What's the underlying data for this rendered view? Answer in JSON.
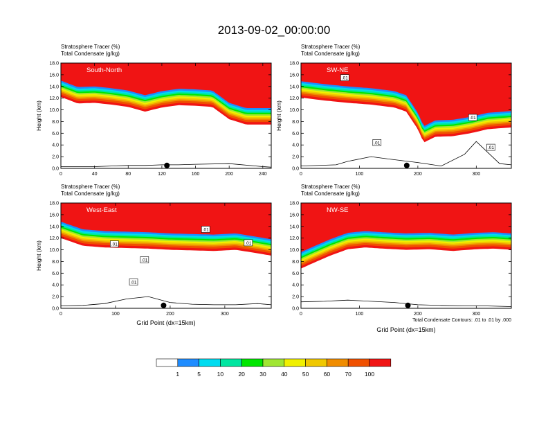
{
  "title": "2013-09-02_00:00:00",
  "colors": {
    "levels": [
      "#ffffff",
      "#1e8cff",
      "#00dcf0",
      "#00e6a0",
      "#00e600",
      "#a0e632",
      "#f0f000",
      "#f0c800",
      "#f08c00",
      "#f05000",
      "#f01414"
    ]
  },
  "colorbar": {
    "labels": [
      "1",
      "5",
      "10",
      "20",
      "30",
      "40",
      "50",
      "60",
      "70",
      "100"
    ]
  },
  "footnote": "Total Condensate Contours: .01 to .01 by .000",
  "chart_data": [
    {
      "type": "heatmap",
      "label": "South-North",
      "title_lines": [
        "Stratosphere Tracer   (%)",
        "Total Condensate   (g/kg)"
      ],
      "ylabel": "Height (km)",
      "xlabel": "",
      "xlim": [
        0,
        250
      ],
      "ylim": [
        0,
        18
      ],
      "xticks": [
        "0",
        "40",
        "80",
        "120",
        "160",
        "200",
        "240"
      ],
      "xtick_values": [
        0,
        40,
        80,
        120,
        160,
        200,
        240
      ],
      "yticks": [
        "0.0",
        "2.0",
        "4.0",
        "6.0",
        "8.0",
        "10.0",
        "12.0",
        "14.0",
        "16.0",
        "18.0"
      ],
      "ytick_values": [
        0,
        2,
        4,
        6,
        8,
        10,
        12,
        14,
        16,
        18
      ],
      "tropopause_x": [
        0,
        20,
        40,
        60,
        80,
        100,
        120,
        140,
        160,
        180,
        200,
        220,
        250
      ],
      "tropopause_km": [
        15.0,
        13.9,
        14.0,
        13.7,
        13.3,
        12.5,
        13.2,
        13.6,
        13.5,
        13.3,
        11.2,
        10.3,
        10.3
      ],
      "terrain_x": [
        0,
        40,
        60,
        80,
        100,
        120,
        140,
        160,
        200,
        240,
        250
      ],
      "terrain_km": [
        0.3,
        0.3,
        0.4,
        0.5,
        0.5,
        0.6,
        0.6,
        0.7,
        0.8,
        0.3,
        0.2
      ],
      "marker_x": 126,
      "contour_labels": []
    },
    {
      "type": "heatmap",
      "label": "SW-NE",
      "title_lines": [
        "Stratosphere Tracer   (%)",
        "Total Condensate   (g/kg)"
      ],
      "ylabel": "Height (km)",
      "xlabel": "",
      "xlim": [
        0,
        360
      ],
      "ylim": [
        0,
        18
      ],
      "xticks": [
        "0",
        "100",
        "200",
        "300"
      ],
      "xtick_values": [
        0,
        100,
        200,
        300
      ],
      "yticks": [
        "0.0",
        "2.0",
        "4.0",
        "6.0",
        "8.0",
        "10.0",
        "12.0",
        "14.0",
        "16.0",
        "18.0"
      ],
      "ytick_values": [
        0,
        2,
        4,
        6,
        8,
        10,
        12,
        14,
        16,
        18
      ],
      "tropopause_x": [
        0,
        40,
        80,
        120,
        160,
        180,
        200,
        210,
        230,
        260,
        290,
        320,
        360
      ],
      "tropopause_km": [
        14.9,
        14.4,
        14.0,
        13.7,
        13.2,
        12.5,
        9.5,
        7.2,
        8.2,
        8.3,
        8.8,
        9.5,
        9.8
      ],
      "terrain_x": [
        0,
        60,
        80,
        120,
        150,
        200,
        240,
        280,
        300,
        340,
        360
      ],
      "terrain_km": [
        0.4,
        0.6,
        1.2,
        2.0,
        1.6,
        1.0,
        0.4,
        2.4,
        4.6,
        0.8,
        0.6
      ],
      "marker_x": 181,
      "contour_labels": [
        ".01",
        ".01",
        ".01",
        ".01"
      ],
      "contour_label_x": [
        75,
        130,
        294,
        325
      ],
      "contour_label_km": [
        15.5,
        4.4,
        8.7,
        3.6
      ]
    },
    {
      "type": "heatmap",
      "label": "West-East",
      "title_lines": [
        "Stratosphere Tracer   (%)",
        "Total Condensate   (g/kg)"
      ],
      "ylabel": "Height (km)",
      "xlabel": "Grid Point (dx=15km)",
      "xlim": [
        0,
        385
      ],
      "ylim": [
        0,
        18
      ],
      "xticks": [
        "0",
        "100",
        "200",
        "300"
      ],
      "xtick_values": [
        0,
        100,
        200,
        300
      ],
      "yticks": [
        "0.0",
        "2.0",
        "4.0",
        "6.0",
        "8.0",
        "10.0",
        "12.0",
        "14.0",
        "16.0",
        "18.0"
      ],
      "ytick_values": [
        0,
        2,
        4,
        6,
        8,
        10,
        12,
        14,
        16,
        18
      ],
      "tropopause_x": [
        0,
        40,
        80,
        120,
        160,
        200,
        240,
        280,
        320,
        360,
        385
      ],
      "tropopause_km": [
        14.8,
        13.5,
        13.2,
        13.1,
        13.0,
        12.8,
        12.7,
        12.6,
        12.8,
        12.2,
        11.8
      ],
      "terrain_x": [
        0,
        40,
        80,
        120,
        160,
        200,
        240,
        280,
        320,
        360,
        385
      ],
      "terrain_km": [
        0.4,
        0.5,
        0.8,
        1.6,
        2.0,
        1.0,
        0.7,
        0.6,
        0.6,
        0.8,
        0.6
      ],
      "marker_x": 188,
      "contour_labels": [
        ".01",
        ".01",
        ".01",
        ".01",
        ".01"
      ],
      "contour_label_x": [
        98,
        153,
        133,
        265,
        343
      ],
      "contour_label_km": [
        11.0,
        8.3,
        4.5,
        13.5,
        11.2
      ]
    },
    {
      "type": "heatmap",
      "label": "NW-SE",
      "title_lines": [
        "Stratosphere Tracer   (%)",
        "Total Condensate   (g/kg)"
      ],
      "ylabel": "",
      "xlabel": "Grid Point (dx=15km)",
      "xlim": [
        0,
        360
      ],
      "ylim": [
        0,
        18
      ],
      "xticks": [
        "0",
        "100",
        "200",
        "300"
      ],
      "xtick_values": [
        0,
        100,
        200,
        300
      ],
      "yticks": [
        "0.0",
        "2.0",
        "4.0",
        "6.0",
        "8.0",
        "10.0",
        "12.0",
        "14.0",
        "16.0",
        "18.0"
      ],
      "ytick_values": [
        0,
        2,
        4,
        6,
        8,
        10,
        12,
        14,
        16,
        18
      ],
      "tropopause_x": [
        0,
        20,
        50,
        80,
        110,
        140,
        180,
        220,
        260,
        300,
        330,
        360
      ],
      "tropopause_km": [
        9.6,
        10.5,
        11.8,
        12.9,
        13.2,
        13.0,
        12.8,
        12.9,
        12.6,
        12.9,
        13.0,
        12.8
      ],
      "terrain_x": [
        0,
        40,
        80,
        120,
        160,
        200,
        240,
        280,
        320,
        360
      ],
      "terrain_km": [
        1.1,
        1.2,
        1.4,
        1.2,
        1.0,
        0.6,
        0.5,
        0.4,
        0.4,
        0.3
      ],
      "marker_x": 183,
      "contour_labels": []
    }
  ]
}
